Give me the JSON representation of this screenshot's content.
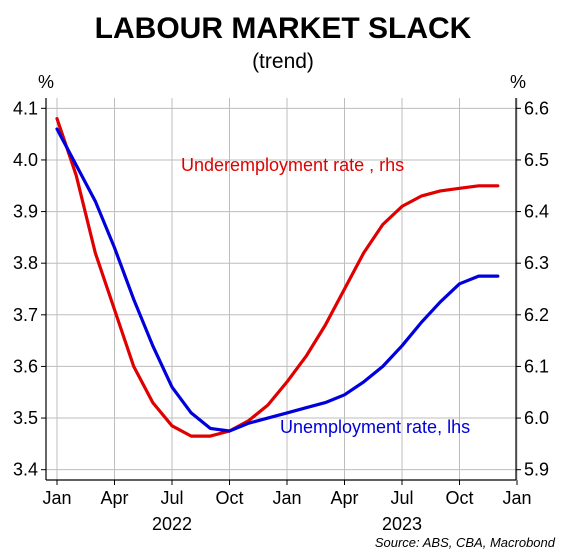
{
  "chart_data": {
    "type": "line",
    "title": "LABOUR MARKET SLACK",
    "subtitle": "(trend)",
    "left_unit": "%",
    "right_unit": "%",
    "source": "Source: ABS, CBA, Macrobond",
    "x_ticks": [
      "Jan",
      "Apr",
      "Jul",
      "Oct",
      "Jan",
      "Apr",
      "Jul",
      "Oct",
      "Jan"
    ],
    "x_tick_months": [
      "2022-01",
      "2022-04",
      "2022-07",
      "2022-10",
      "2023-01",
      "2023-04",
      "2023-07",
      "2023-10",
      "2024-01"
    ],
    "year_labels": [
      {
        "text": "2022",
        "month": "2022-07"
      },
      {
        "text": "2023",
        "month": "2023-07"
      }
    ],
    "ylim_left": [
      3.38,
      4.12
    ],
    "ylim_right": [
      5.88,
      6.62
    ],
    "y_ticks_left": [
      "3.4",
      "3.5",
      "3.6",
      "3.7",
      "3.8",
      "3.9",
      "4.0",
      "4.1"
    ],
    "y_ticks_right": [
      "5.9",
      "6.0",
      "6.1",
      "6.2",
      "6.3",
      "6.4",
      "6.5",
      "6.6"
    ],
    "grid": true,
    "series": [
      {
        "name": "Unemployment rate, lhs",
        "axis": "left",
        "color": "#0000dd",
        "x": [
          "2022-01",
          "2022-02",
          "2022-03",
          "2022-04",
          "2022-05",
          "2022-06",
          "2022-07",
          "2022-08",
          "2022-09",
          "2022-10",
          "2022-11",
          "2022-12",
          "2023-01",
          "2023-02",
          "2023-03",
          "2023-04",
          "2023-05",
          "2023-06",
          "2023-07",
          "2023-08",
          "2023-09",
          "2023-10",
          "2023-11",
          "2023-12"
        ],
        "values": [
          4.06,
          3.99,
          3.92,
          3.83,
          3.73,
          3.64,
          3.56,
          3.51,
          3.48,
          3.475,
          3.49,
          3.5,
          3.51,
          3.52,
          3.53,
          3.545,
          3.57,
          3.6,
          3.64,
          3.685,
          3.725,
          3.76,
          3.775,
          3.775
        ]
      },
      {
        "name": "Underemployment rate , rhs",
        "axis": "right",
        "color": "#e00000",
        "x": [
          "2022-01",
          "2022-02",
          "2022-03",
          "2022-04",
          "2022-05",
          "2022-06",
          "2022-07",
          "2022-08",
          "2022-09",
          "2022-10",
          "2022-11",
          "2022-12",
          "2023-01",
          "2023-02",
          "2023-03",
          "2023-04",
          "2023-05",
          "2023-06",
          "2023-07",
          "2023-08",
          "2023-09",
          "2023-10",
          "2023-11",
          "2023-12"
        ],
        "values": [
          6.58,
          6.47,
          6.32,
          6.21,
          6.1,
          6.03,
          5.985,
          5.965,
          5.965,
          5.975,
          5.995,
          6.025,
          6.07,
          6.12,
          6.18,
          6.25,
          6.32,
          6.375,
          6.41,
          6.43,
          6.44,
          6.445,
          6.45,
          6.45
        ]
      }
    ]
  }
}
